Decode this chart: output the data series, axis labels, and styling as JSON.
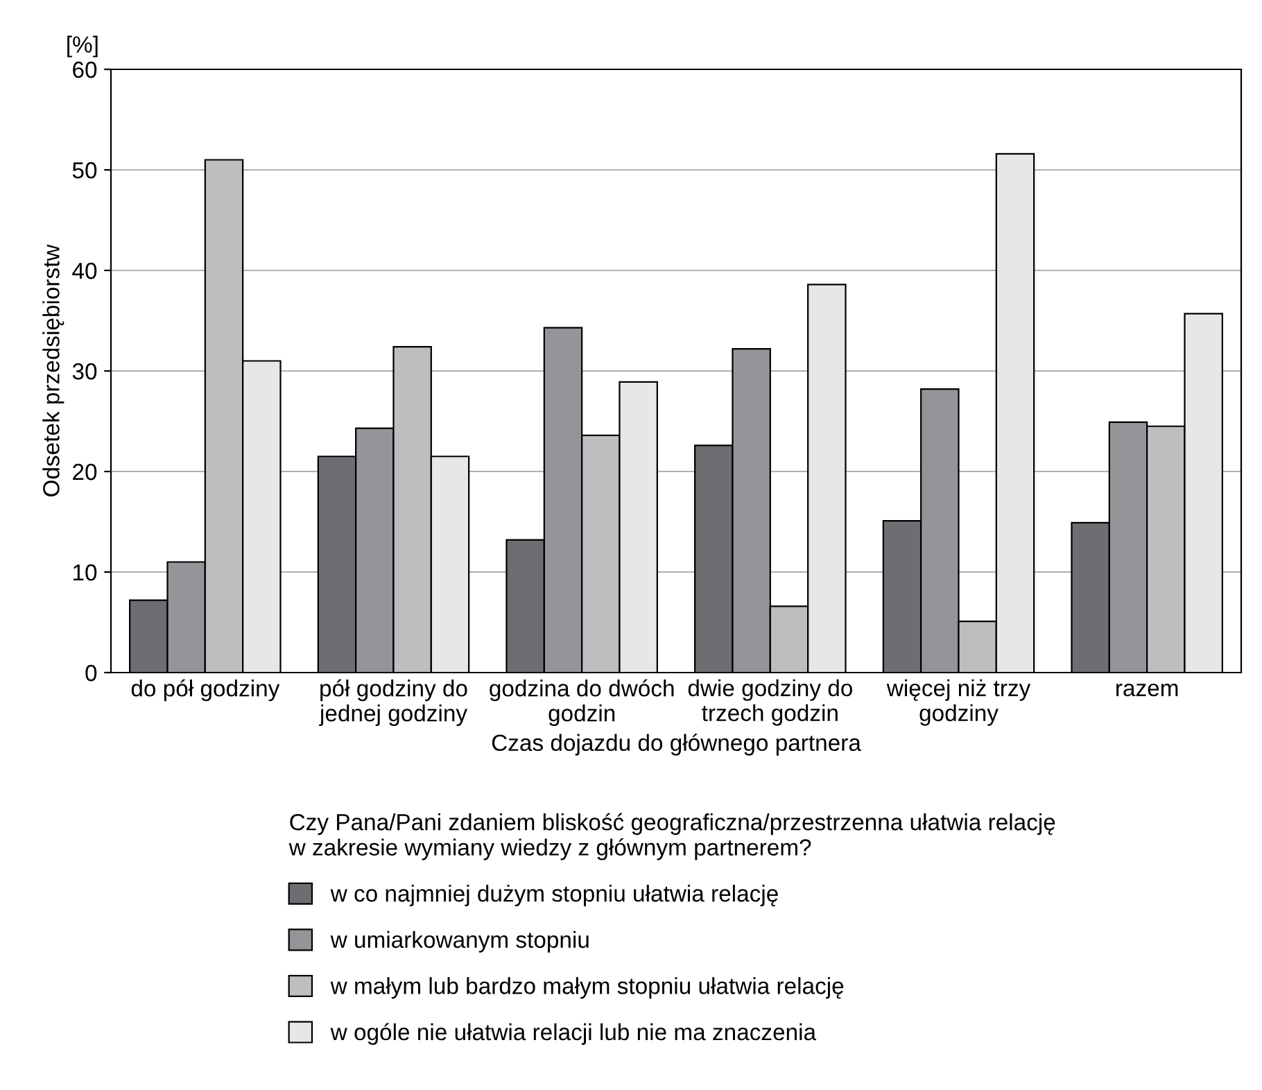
{
  "chart_data": {
    "type": "bar",
    "categories": [
      "do pół godziny",
      "pół godziny do\njednej godziny",
      "godzina do dwóch\ngodzin",
      "dwie godziny do\ntrzech godzin",
      "więcej niż trzy\ngodziny",
      "razem"
    ],
    "series": [
      {
        "name": "w co najmniej dużym stopniu ułatwia relację",
        "color": "#6d6e71",
        "values": [
          7.2,
          21.5,
          13.2,
          22.6,
          15.1,
          14.9
        ]
      },
      {
        "name": "w umiarkowanym stopniu",
        "color": "#939598",
        "values": [
          11,
          24.3,
          34.3,
          32.2,
          28.2,
          24.9
        ]
      },
      {
        "name": "w małym lub bardzo małym stopniu ułatwia relację",
        "color": "#bcbec0",
        "values": [
          51,
          32.4,
          23.6,
          6.6,
          5.1,
          24.5
        ]
      },
      {
        "name": "w ogóle nie ułatwia relacji lub nie ma znaczenia",
        "color": "#e6e7e8",
        "values": [
          31,
          21.5,
          28.9,
          38.6,
          51.6,
          35.7
        ]
      }
    ],
    "xlabel": "Czas dojazdu do głównego partnera",
    "ylabel": "Odsetek przedsiębiorstw",
    "legend_title": "Czy Pana/Pani zdaniem bliskość geograficzna/przestrzenna ułatwia relację\nw zakresie wymiany wiedzy z głównym partnerem?",
    "annotations": [
      "[%]"
    ],
    "ylim": [
      0,
      60
    ],
    "yticks": [
      0,
      10,
      20,
      30,
      40,
      50,
      60
    ],
    "grid": "y",
    "legend": "bottom"
  }
}
